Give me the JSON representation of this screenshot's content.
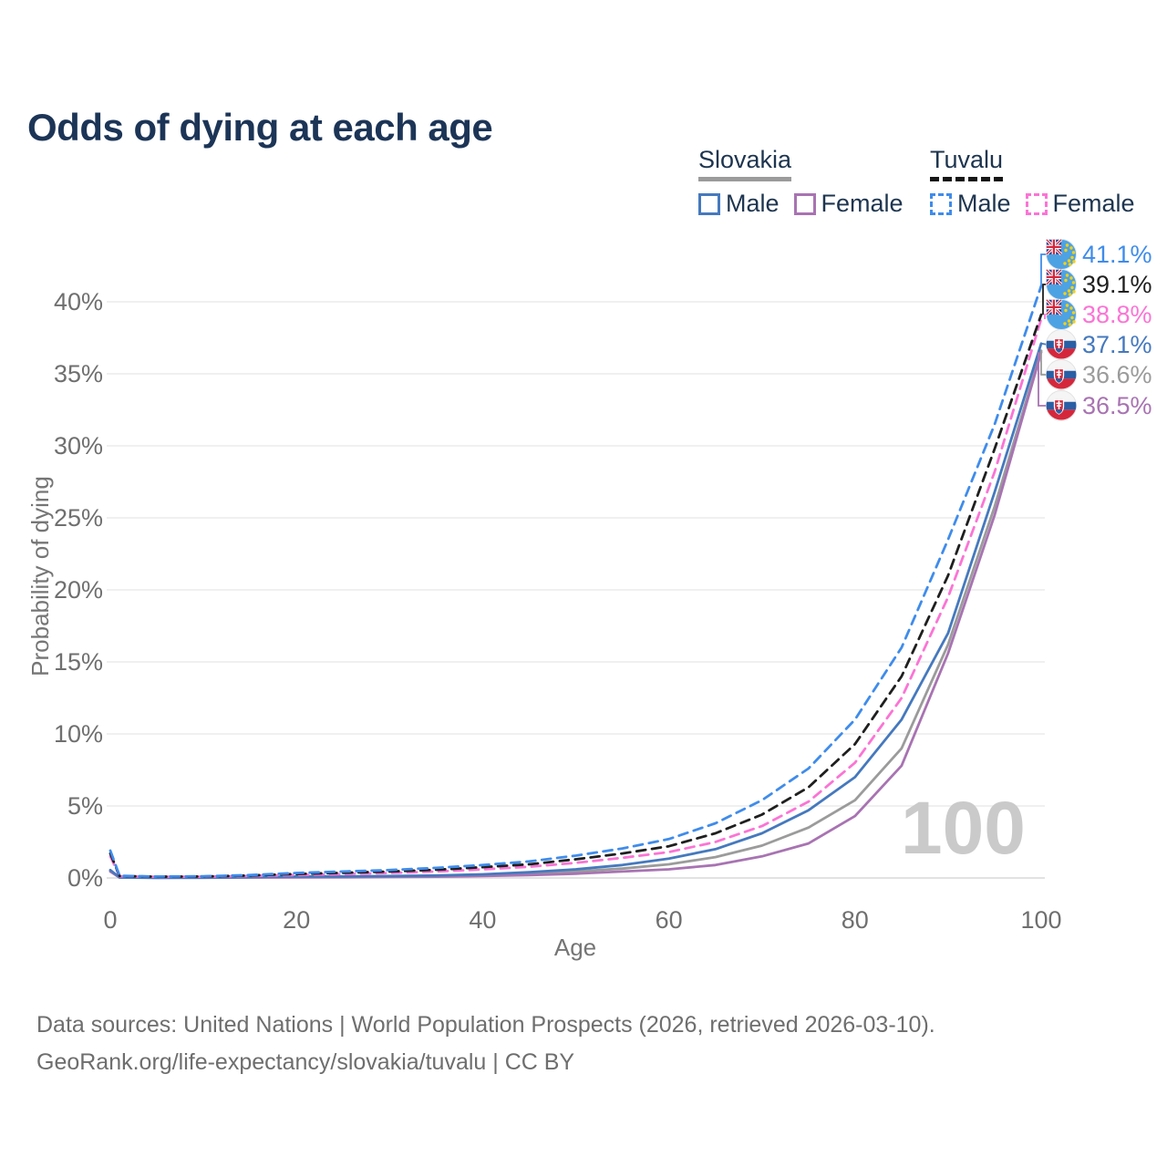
{
  "header": {
    "title": "Odds of dying at each age"
  },
  "legend": {
    "groups": [
      {
        "country": "Slovakia",
        "entries": [
          {
            "label": "Male"
          },
          {
            "label": "Female"
          }
        ]
      },
      {
        "country": "Tuvalu",
        "entries": [
          {
            "label": "Male"
          },
          {
            "label": "Female"
          }
        ]
      }
    ]
  },
  "watermark": "100",
  "footer": {
    "line1": "Data sources: United Nations | World Population Prospects (2026, retrieved 2026-03-10).",
    "line2": "GeoRank.org/life-expectancy/slovakia/tuvalu | CC BY"
  },
  "chart_data": {
    "type": "line",
    "title": "Odds of dying at each age",
    "xlabel": "Age",
    "ylabel": "Probability of dying",
    "xlim": [
      0,
      100
    ],
    "ylim_pct": [
      0,
      43
    ],
    "xticks": [
      0,
      20,
      40,
      60,
      80,
      100
    ],
    "yticks_pct": [
      0,
      5,
      10,
      15,
      20,
      25,
      30,
      35,
      40
    ],
    "grid": "horizontal",
    "legend_position": "top-right",
    "x_ages": [
      0,
      1,
      5,
      10,
      15,
      20,
      25,
      30,
      35,
      40,
      45,
      50,
      55,
      60,
      65,
      70,
      75,
      80,
      85,
      90,
      95,
      100
    ],
    "series": [
      {
        "name": "Slovakia All",
        "country": "Slovakia",
        "sex": "All",
        "color": "#9b9b9b",
        "dashed": false,
        "values_pct": [
          0.5,
          0.03,
          0.02,
          0.02,
          0.05,
          0.07,
          0.08,
          0.1,
          0.13,
          0.19,
          0.3,
          0.45,
          0.65,
          0.95,
          1.45,
          2.25,
          3.5,
          5.4,
          9.0,
          16.2,
          25.8,
          36.6
        ]
      },
      {
        "name": "Slovakia Female",
        "country": "Slovakia",
        "sex": "Female",
        "color": "#a873b2",
        "dashed": false,
        "values_pct": [
          0.45,
          0.03,
          0.01,
          0.02,
          0.03,
          0.04,
          0.05,
          0.07,
          0.09,
          0.13,
          0.2,
          0.3,
          0.45,
          0.6,
          0.9,
          1.5,
          2.4,
          4.3,
          7.8,
          15.6,
          25.2,
          36.5
        ]
      },
      {
        "name": "Slovakia Male",
        "country": "Slovakia",
        "sex": "Male",
        "color": "#4579be",
        "dashed": false,
        "values_pct": [
          0.55,
          0.04,
          0.02,
          0.03,
          0.06,
          0.1,
          0.11,
          0.13,
          0.17,
          0.25,
          0.4,
          0.6,
          0.9,
          1.35,
          2.0,
          3.1,
          4.7,
          7.0,
          11.0,
          17.0,
          26.8,
          37.1
        ]
      },
      {
        "name": "Tuvalu Female",
        "country": "Tuvalu",
        "sex": "Female",
        "color": "#fb74d5",
        "dashed": true,
        "values_pct": [
          1.5,
          0.12,
          0.08,
          0.09,
          0.14,
          0.2,
          0.27,
          0.35,
          0.45,
          0.6,
          0.78,
          1.05,
          1.4,
          1.8,
          2.5,
          3.6,
          5.3,
          8.0,
          12.5,
          19.5,
          28.2,
          38.8
        ]
      },
      {
        "name": "Tuvalu All",
        "country": "Tuvalu",
        "sex": "All",
        "color": "#1f1f1f",
        "dashed": true,
        "values_pct": [
          1.7,
          0.13,
          0.09,
          0.1,
          0.17,
          0.28,
          0.36,
          0.45,
          0.57,
          0.75,
          0.95,
          1.3,
          1.7,
          2.2,
          3.1,
          4.4,
          6.3,
          9.3,
          14.0,
          21.0,
          29.8,
          39.1
        ]
      },
      {
        "name": "Tuvalu Male",
        "country": "Tuvalu",
        "sex": "Male",
        "color": "#3f8ceb",
        "dashed": true,
        "values_pct": [
          1.9,
          0.15,
          0.1,
          0.12,
          0.2,
          0.35,
          0.45,
          0.55,
          0.7,
          0.9,
          1.15,
          1.55,
          2.05,
          2.7,
          3.8,
          5.4,
          7.6,
          11.0,
          16.0,
          23.5,
          31.5,
          41.1
        ]
      }
    ],
    "end_labels": [
      {
        "country": "Tuvalu",
        "sex": "Male",
        "value": "41.1%",
        "value_pct": 41.1,
        "color": "#3f8ceb"
      },
      {
        "country": "Tuvalu",
        "sex": "All",
        "value": "39.1%",
        "value_pct": 39.1,
        "color": "#1f1f1f"
      },
      {
        "country": "Tuvalu",
        "sex": "Female",
        "value": "38.8%",
        "value_pct": 38.8,
        "color": "#fb74d5"
      },
      {
        "country": "Slovakia",
        "sex": "Male",
        "value": "37.1%",
        "value_pct": 37.1,
        "color": "#4579be"
      },
      {
        "country": "Slovakia",
        "sex": "All",
        "value": "36.6%",
        "value_pct": 36.6,
        "color": "#9b9b9b"
      },
      {
        "country": "Slovakia",
        "sex": "Female",
        "value": "36.5%",
        "value_pct": 36.5,
        "color": "#a873b2"
      }
    ]
  }
}
